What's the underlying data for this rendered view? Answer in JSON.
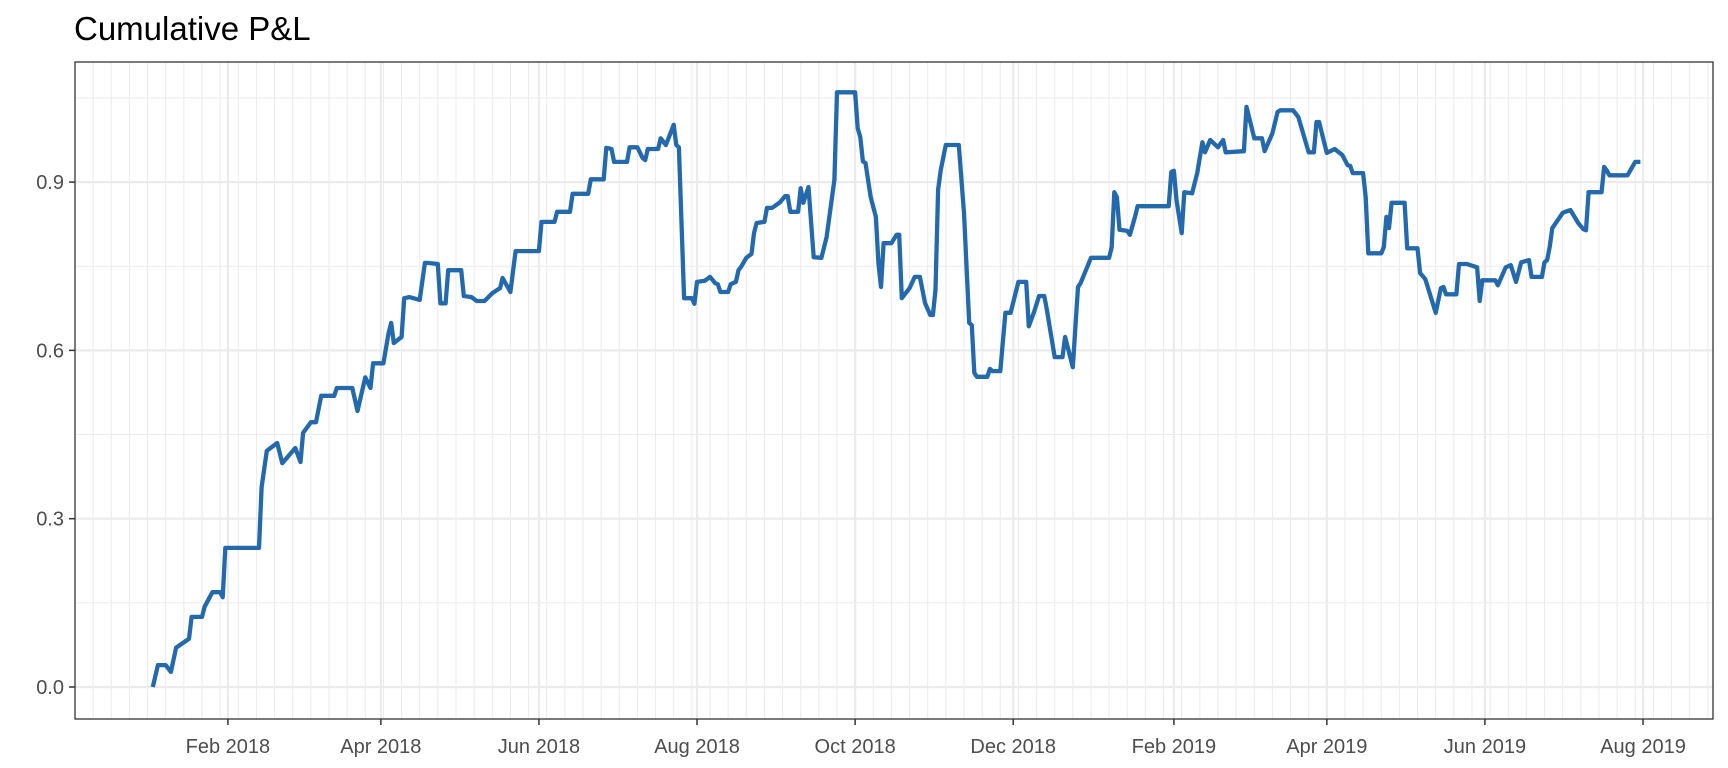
{
  "chart_data": {
    "type": "line",
    "title": "Cumulative P&L",
    "xlabel": "",
    "ylabel": "",
    "x_type": "date",
    "xlim": [
      "2017-12-04",
      "2019-08-28"
    ],
    "ylim": [
      -0.057,
      1.114
    ],
    "x_ticks": [
      {
        "date": "2018-02-01",
        "label": "Feb 2018"
      },
      {
        "date": "2018-04-01",
        "label": "Apr 2018"
      },
      {
        "date": "2018-06-01",
        "label": "Jun 2018"
      },
      {
        "date": "2018-08-01",
        "label": "Aug 2018"
      },
      {
        "date": "2018-10-01",
        "label": "Oct 2018"
      },
      {
        "date": "2018-12-01",
        "label": "Dec 2018"
      },
      {
        "date": "2019-02-01",
        "label": "Feb 2019"
      },
      {
        "date": "2019-04-01",
        "label": "Apr 2019"
      },
      {
        "date": "2019-06-01",
        "label": "Jun 2019"
      },
      {
        "date": "2019-08-01",
        "label": "Aug 2019"
      }
    ],
    "y_ticks": [
      {
        "value": 0.0,
        "label": "0.0"
      },
      {
        "value": 0.3,
        "label": "0.3"
      },
      {
        "value": 0.6,
        "label": "0.6"
      },
      {
        "value": 0.9,
        "label": "0.9"
      }
    ],
    "y_minor": [
      0.15,
      0.45,
      0.75,
      1.05
    ],
    "x_minor": "weekly (Mondays)",
    "grid": true,
    "legend": "none",
    "colors": {
      "line": "#2469AB",
      "grid": "#ebebeb",
      "panel_border": "#333333",
      "tick_text": "#4d4d4d"
    },
    "series": [
      {
        "points": [
          [
            "2018-01-03",
            0.0
          ],
          [
            "2018-01-05",
            0.039
          ],
          [
            "2018-01-08",
            0.039
          ],
          [
            "2018-01-10",
            0.027
          ],
          [
            "2018-01-12",
            0.07
          ],
          [
            "2018-01-17",
            0.086
          ],
          [
            "2018-01-18",
            0.125
          ],
          [
            "2018-01-22",
            0.125
          ],
          [
            "2018-01-23",
            0.143
          ],
          [
            "2018-01-26",
            0.169
          ],
          [
            "2018-01-29",
            0.169
          ],
          [
            "2018-01-30",
            0.16
          ],
          [
            "2018-01-31",
            0.248
          ],
          [
            "2018-02-13",
            0.248
          ],
          [
            "2018-02-14",
            0.356
          ],
          [
            "2018-02-16",
            0.421
          ],
          [
            "2018-02-20",
            0.435
          ],
          [
            "2018-02-22",
            0.399
          ],
          [
            "2018-02-27",
            0.426
          ],
          [
            "2018-03-01",
            0.401
          ],
          [
            "2018-03-02",
            0.453
          ],
          [
            "2018-03-05",
            0.472
          ],
          [
            "2018-03-07",
            0.472
          ],
          [
            "2018-03-09",
            0.519
          ],
          [
            "2018-03-14",
            0.519
          ],
          [
            "2018-03-15",
            0.533
          ],
          [
            "2018-03-21",
            0.533
          ],
          [
            "2018-03-23",
            0.492
          ],
          [
            "2018-03-26",
            0.552
          ],
          [
            "2018-03-28",
            0.533
          ],
          [
            "2018-03-29",
            0.577
          ],
          [
            "2018-04-02",
            0.577
          ],
          [
            "2018-04-04",
            0.631
          ],
          [
            "2018-04-05",
            0.649
          ],
          [
            "2018-04-06",
            0.613
          ],
          [
            "2018-04-09",
            0.624
          ],
          [
            "2018-04-10",
            0.693
          ],
          [
            "2018-04-12",
            0.695
          ],
          [
            "2018-04-16",
            0.69
          ],
          [
            "2018-04-18",
            0.756
          ],
          [
            "2018-04-19",
            0.756
          ],
          [
            "2018-04-23",
            0.754
          ],
          [
            "2018-04-24",
            0.684
          ],
          [
            "2018-04-26",
            0.684
          ],
          [
            "2018-04-27",
            0.743
          ],
          [
            "2018-05-02",
            0.743
          ],
          [
            "2018-05-03",
            0.697
          ],
          [
            "2018-05-06",
            0.695
          ],
          [
            "2018-05-08",
            0.688
          ],
          [
            "2018-05-11",
            0.688
          ],
          [
            "2018-05-14",
            0.702
          ],
          [
            "2018-05-17",
            0.711
          ],
          [
            "2018-05-18",
            0.729
          ],
          [
            "2018-05-21",
            0.704
          ],
          [
            "2018-05-23",
            0.777
          ],
          [
            "2018-06-01",
            0.777
          ],
          [
            "2018-06-02",
            0.829
          ],
          [
            "2018-06-07",
            0.829
          ],
          [
            "2018-06-08",
            0.847
          ],
          [
            "2018-06-13",
            0.847
          ],
          [
            "2018-06-14",
            0.879
          ],
          [
            "2018-06-20",
            0.879
          ],
          [
            "2018-06-21",
            0.905
          ],
          [
            "2018-06-26",
            0.905
          ],
          [
            "2018-06-27",
            0.961
          ],
          [
            "2018-06-29",
            0.959
          ],
          [
            "2018-06-30",
            0.936
          ],
          [
            "2018-07-05",
            0.936
          ],
          [
            "2018-07-06",
            0.962
          ],
          [
            "2018-07-09",
            0.962
          ],
          [
            "2018-07-11",
            0.943
          ],
          [
            "2018-07-12",
            0.939
          ],
          [
            "2018-07-13",
            0.959
          ],
          [
            "2018-07-17",
            0.959
          ],
          [
            "2018-07-18",
            0.978
          ],
          [
            "2018-07-20",
            0.966
          ],
          [
            "2018-07-23",
            1.002
          ],
          [
            "2018-07-24",
            0.966
          ],
          [
            "2018-07-25",
            0.962
          ],
          [
            "2018-07-27",
            0.693
          ],
          [
            "2018-07-30",
            0.693
          ],
          [
            "2018-07-31",
            0.683
          ],
          [
            "2018-08-01",
            0.722
          ],
          [
            "2018-08-04",
            0.724
          ],
          [
            "2018-08-06",
            0.731
          ],
          [
            "2018-08-08",
            0.72
          ],
          [
            "2018-08-09",
            0.718
          ],
          [
            "2018-08-10",
            0.704
          ],
          [
            "2018-08-13",
            0.704
          ],
          [
            "2018-08-14",
            0.718
          ],
          [
            "2018-08-16",
            0.722
          ],
          [
            "2018-08-17",
            0.743
          ],
          [
            "2018-08-18",
            0.749
          ],
          [
            "2018-08-20",
            0.765
          ],
          [
            "2018-08-22",
            0.772
          ],
          [
            "2018-08-23",
            0.809
          ],
          [
            "2018-08-24",
            0.827
          ],
          [
            "2018-08-27",
            0.829
          ],
          [
            "2018-08-28",
            0.854
          ],
          [
            "2018-08-30",
            0.854
          ],
          [
            "2018-09-02",
            0.864
          ],
          [
            "2018-09-04",
            0.875
          ],
          [
            "2018-09-05",
            0.875
          ],
          [
            "2018-09-06",
            0.847
          ],
          [
            "2018-09-09",
            0.847
          ],
          [
            "2018-09-10",
            0.889
          ],
          [
            "2018-09-11",
            0.863
          ],
          [
            "2018-09-13",
            0.891
          ],
          [
            "2018-09-15",
            0.766
          ],
          [
            "2018-09-18",
            0.765
          ],
          [
            "2018-09-20",
            0.802
          ],
          [
            "2018-09-23",
            0.904
          ],
          [
            "2018-09-24",
            1.06
          ],
          [
            "2018-10-01",
            1.06
          ],
          [
            "2018-10-02",
            0.996
          ],
          [
            "2018-10-03",
            0.98
          ],
          [
            "2018-10-04",
            0.937
          ],
          [
            "2018-10-05",
            0.934
          ],
          [
            "2018-10-07",
            0.873
          ],
          [
            "2018-10-09",
            0.838
          ],
          [
            "2018-10-10",
            0.756
          ],
          [
            "2018-10-11",
            0.713
          ],
          [
            "2018-10-12",
            0.791
          ],
          [
            "2018-10-15",
            0.791
          ],
          [
            "2018-10-17",
            0.806
          ],
          [
            "2018-10-18",
            0.806
          ],
          [
            "2018-10-19",
            0.693
          ],
          [
            "2018-10-22",
            0.711
          ],
          [
            "2018-10-24",
            0.731
          ],
          [
            "2018-10-26",
            0.731
          ],
          [
            "2018-10-28",
            0.684
          ],
          [
            "2018-10-30",
            0.663
          ],
          [
            "2018-10-31",
            0.663
          ],
          [
            "2018-11-01",
            0.708
          ],
          [
            "2018-11-02",
            0.886
          ],
          [
            "2018-11-03",
            0.921
          ],
          [
            "2018-11-05",
            0.966
          ],
          [
            "2018-11-10",
            0.966
          ],
          [
            "2018-11-12",
            0.845
          ],
          [
            "2018-11-14",
            0.649
          ],
          [
            "2018-11-15",
            0.645
          ],
          [
            "2018-11-16",
            0.56
          ],
          [
            "2018-11-17",
            0.553
          ],
          [
            "2018-11-21",
            0.553
          ],
          [
            "2018-11-22",
            0.567
          ],
          [
            "2018-11-23",
            0.563
          ],
          [
            "2018-11-26",
            0.563
          ],
          [
            "2018-11-28",
            0.667
          ],
          [
            "2018-11-30",
            0.667
          ],
          [
            "2018-12-03",
            0.722
          ],
          [
            "2018-12-06",
            0.722
          ],
          [
            "2018-12-07",
            0.643
          ],
          [
            "2018-12-09",
            0.668
          ],
          [
            "2018-12-11",
            0.697
          ],
          [
            "2018-12-13",
            0.697
          ],
          [
            "2018-12-14",
            0.672
          ],
          [
            "2018-12-17",
            0.588
          ],
          [
            "2018-12-20",
            0.588
          ],
          [
            "2018-12-21",
            0.624
          ],
          [
            "2018-12-24",
            0.57
          ],
          [
            "2018-12-26",
            0.713
          ],
          [
            "2018-12-27",
            0.72
          ],
          [
            "2018-12-31",
            0.765
          ],
          [
            "2019-01-07",
            0.765
          ],
          [
            "2019-01-08",
            0.784
          ],
          [
            "2019-01-09",
            0.882
          ],
          [
            "2019-01-10",
            0.873
          ],
          [
            "2019-01-11",
            0.815
          ],
          [
            "2019-01-14",
            0.813
          ],
          [
            "2019-01-15",
            0.806
          ],
          [
            "2019-01-17",
            0.838
          ],
          [
            "2019-01-18",
            0.857
          ],
          [
            "2019-01-30",
            0.857
          ],
          [
            "2019-01-31",
            0.918
          ],
          [
            "2019-02-01",
            0.92
          ],
          [
            "2019-02-02",
            0.868
          ],
          [
            "2019-02-04",
            0.809
          ],
          [
            "2019-02-05",
            0.882
          ],
          [
            "2019-02-08",
            0.88
          ],
          [
            "2019-02-10",
            0.916
          ],
          [
            "2019-02-12",
            0.971
          ],
          [
            "2019-02-13",
            0.953
          ],
          [
            "2019-02-15",
            0.975
          ],
          [
            "2019-02-18",
            0.962
          ],
          [
            "2019-02-20",
            0.975
          ],
          [
            "2019-02-21",
            0.953
          ],
          [
            "2019-02-28",
            0.955
          ],
          [
            "2019-03-01",
            1.034
          ],
          [
            "2019-03-04",
            0.978
          ],
          [
            "2019-03-07",
            0.978
          ],
          [
            "2019-03-08",
            0.955
          ],
          [
            "2019-03-11",
            0.987
          ],
          [
            "2019-03-13",
            1.025
          ],
          [
            "2019-03-14",
            1.028
          ],
          [
            "2019-03-19",
            1.028
          ],
          [
            "2019-03-21",
            1.016
          ],
          [
            "2019-03-25",
            0.953
          ],
          [
            "2019-03-27",
            0.953
          ],
          [
            "2019-03-28",
            1.007
          ],
          [
            "2019-03-29",
            1.007
          ],
          [
            "2019-04-01",
            0.952
          ],
          [
            "2019-04-04",
            0.959
          ],
          [
            "2019-04-07",
            0.948
          ],
          [
            "2019-04-09",
            0.93
          ],
          [
            "2019-04-10",
            0.929
          ],
          [
            "2019-04-11",
            0.916
          ],
          [
            "2019-04-15",
            0.916
          ],
          [
            "2019-04-16",
            0.873
          ],
          [
            "2019-04-17",
            0.773
          ],
          [
            "2019-04-22",
            0.773
          ],
          [
            "2019-04-23",
            0.784
          ],
          [
            "2019-04-24",
            0.838
          ],
          [
            "2019-04-25",
            0.818
          ],
          [
            "2019-04-26",
            0.863
          ],
          [
            "2019-05-01",
            0.863
          ],
          [
            "2019-05-02",
            0.782
          ],
          [
            "2019-05-06",
            0.782
          ],
          [
            "2019-05-07",
            0.738
          ],
          [
            "2019-05-09",
            0.727
          ],
          [
            "2019-05-13",
            0.667
          ],
          [
            "2019-05-15",
            0.711
          ],
          [
            "2019-05-16",
            0.713
          ],
          [
            "2019-05-17",
            0.7
          ],
          [
            "2019-05-21",
            0.7
          ],
          [
            "2019-05-22",
            0.754
          ],
          [
            "2019-05-25",
            0.754
          ],
          [
            "2019-05-29",
            0.748
          ],
          [
            "2019-05-30",
            0.688
          ],
          [
            "2019-05-31",
            0.725
          ],
          [
            "2019-06-05",
            0.725
          ],
          [
            "2019-06-06",
            0.716
          ],
          [
            "2019-06-09",
            0.748
          ],
          [
            "2019-06-11",
            0.752
          ],
          [
            "2019-06-13",
            0.722
          ],
          [
            "2019-06-15",
            0.757
          ],
          [
            "2019-06-18",
            0.761
          ],
          [
            "2019-06-19",
            0.731
          ],
          [
            "2019-06-23",
            0.731
          ],
          [
            "2019-06-24",
            0.757
          ],
          [
            "2019-06-25",
            0.761
          ],
          [
            "2019-06-26",
            0.784
          ],
          [
            "2019-06-27",
            0.818
          ],
          [
            "2019-07-01",
            0.845
          ],
          [
            "2019-07-02",
            0.847
          ],
          [
            "2019-07-04",
            0.85
          ],
          [
            "2019-07-07",
            0.827
          ],
          [
            "2019-07-09",
            0.816
          ],
          [
            "2019-07-10",
            0.814
          ],
          [
            "2019-07-11",
            0.882
          ],
          [
            "2019-07-16",
            0.882
          ],
          [
            "2019-07-17",
            0.927
          ],
          [
            "2019-07-18",
            0.921
          ],
          [
            "2019-07-19",
            0.912
          ],
          [
            "2019-07-26",
            0.912
          ],
          [
            "2019-07-29",
            0.936
          ],
          [
            "2019-07-31",
            0.936
          ]
        ]
      }
    ]
  }
}
